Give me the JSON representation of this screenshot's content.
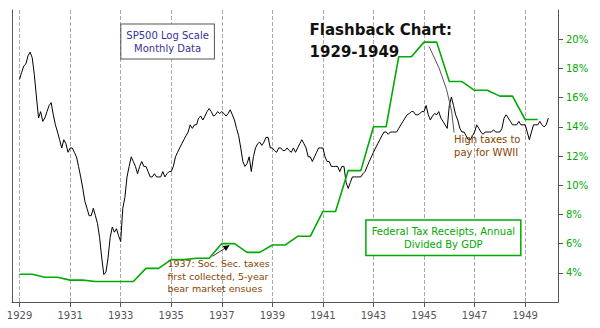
{
  "chart_data": {
    "type": "line",
    "title": "Flashback Chart:\n1929-1949",
    "log": "y",
    "grid": "x",
    "xlim": [
      1928.7,
      1950.3
    ],
    "xticks": [
      1929,
      1931,
      1933,
      1935,
      1937,
      1939,
      1941,
      1943,
      1945,
      1947,
      1949
    ],
    "ylim": [
      3.548133892335755,
      44.66835921509635
    ],
    "yticks": [],
    "y2lim": [
      2,
      22
    ],
    "y2ticks": [
      {
        "value": 4,
        "label": "4%"
      },
      {
        "value": 6,
        "label": "6%"
      },
      {
        "value": 8,
        "label": "8%"
      },
      {
        "value": 10,
        "label": "10%"
      },
      {
        "value": 12,
        "label": "12%"
      },
      {
        "value": 14,
        "label": "14%"
      },
      {
        "value": 16,
        "label": "16%"
      },
      {
        "value": 18,
        "label": "18%"
      },
      {
        "value": 20,
        "label": "20%"
      }
    ],
    "series": [
      {
        "color": "#000000",
        "x": [
          1929.0,
          1929.083,
          1929.167,
          1929.25,
          1929.333,
          1929.417,
          1929.5,
          1929.583,
          1929.667,
          1929.75,
          1929.833,
          1929.917,
          1930.0,
          1930.083,
          1930.167,
          1930.25,
          1930.333,
          1930.417,
          1930.5,
          1930.583,
          1930.667,
          1930.75,
          1930.833,
          1930.917,
          1931.0,
          1931.083,
          1931.167,
          1931.25,
          1931.333,
          1931.417,
          1931.5,
          1931.583,
          1931.667,
          1931.75,
          1931.833,
          1931.917,
          1932.0,
          1932.083,
          1932.167,
          1932.25,
          1932.333,
          1932.417,
          1932.5,
          1932.583,
          1932.667,
          1932.75,
          1932.833,
          1932.917,
          1933.0,
          1933.083,
          1933.167,
          1933.25,
          1933.333,
          1933.417,
          1933.5,
          1933.583,
          1933.667,
          1933.75,
          1933.833,
          1933.917,
          1934.0,
          1934.083,
          1934.167,
          1934.25,
          1934.333,
          1934.417,
          1934.5,
          1934.583,
          1934.667,
          1934.75,
          1934.833,
          1934.917,
          1935.0,
          1935.083,
          1935.167,
          1935.25,
          1935.333,
          1935.417,
          1935.5,
          1935.583,
          1935.667,
          1935.75,
          1935.833,
          1935.917,
          1936.0,
          1936.083,
          1936.167,
          1936.25,
          1936.333,
          1936.417,
          1936.5,
          1936.583,
          1936.667,
          1936.75,
          1936.833,
          1936.917,
          1937.0,
          1937.083,
          1937.167,
          1937.25,
          1937.333,
          1937.417,
          1937.5,
          1937.583,
          1937.667,
          1937.75,
          1937.833,
          1937.917,
          1938.0,
          1938.083,
          1938.167,
          1938.25,
          1938.333,
          1938.417,
          1938.5,
          1938.583,
          1938.667,
          1938.75,
          1938.833,
          1938.917,
          1939.0,
          1939.083,
          1939.167,
          1939.25,
          1939.333,
          1939.417,
          1939.5,
          1939.583,
          1939.667,
          1939.75,
          1939.833,
          1939.917,
          1940.0,
          1940.083,
          1940.167,
          1940.25,
          1940.333,
          1940.417,
          1940.5,
          1940.583,
          1940.667,
          1940.75,
          1940.833,
          1940.917,
          1941.0,
          1941.083,
          1941.167,
          1941.25,
          1941.333,
          1941.417,
          1941.5,
          1941.583,
          1941.667,
          1941.75,
          1941.833,
          1941.917,
          1942.0,
          1942.083,
          1942.167,
          1942.25,
          1942.333,
          1942.417,
          1942.5,
          1942.583,
          1942.667,
          1942.75,
          1942.833,
          1942.917,
          1943.0,
          1943.083,
          1943.167,
          1943.25,
          1943.333,
          1943.417,
          1943.5,
          1943.583,
          1943.667,
          1943.75,
          1943.833,
          1943.917,
          1944.0,
          1944.083,
          1944.167,
          1944.25,
          1944.333,
          1944.417,
          1944.5,
          1944.583,
          1944.667,
          1944.75,
          1944.833,
          1944.917,
          1945.0,
          1945.083,
          1945.167,
          1945.25,
          1945.333,
          1945.417,
          1945.5,
          1945.583,
          1945.667,
          1945.75,
          1945.833,
          1945.917,
          1946.0,
          1946.083,
          1946.167,
          1946.25,
          1946.333,
          1946.417,
          1946.5,
          1946.583,
          1946.667,
          1946.75,
          1946.833,
          1946.917,
          1947.0,
          1947.083,
          1947.167,
          1947.25,
          1947.333,
          1947.417,
          1947.5,
          1947.583,
          1947.667,
          1947.75,
          1947.833,
          1947.917,
          1948.0,
          1948.083,
          1948.167,
          1948.25,
          1948.333,
          1948.417,
          1948.5,
          1948.583,
          1948.667,
          1948.75,
          1948.833,
          1948.917,
          1949.0,
          1949.083,
          1949.167,
          1949.25,
          1949.333,
          1949.417,
          1949.5,
          1949.583,
          1949.667,
          1949.75,
          1949.833,
          1949.917
        ],
        "values": [
          24.5,
          26.0,
          27.5,
          28.0,
          30.0,
          31.0,
          29.5,
          25.5,
          21.0,
          17.5,
          18.5,
          17.0,
          17.5,
          18.5,
          19.5,
          20.0,
          18.0,
          16.5,
          15.5,
          14.5,
          13.5,
          14.5,
          14.0,
          13.0,
          13.5,
          13.5,
          13.0,
          12.5,
          11.5,
          10.5,
          9.5,
          8.5,
          8.0,
          7.5,
          7.5,
          8.0,
          7.5,
          7.0,
          6.2,
          5.2,
          4.5,
          4.6,
          5.2,
          6.2,
          6.8,
          6.5,
          6.7,
          6.3,
          6.0,
          8.0,
          8.8,
          10.5,
          11.5,
          12.5,
          12.0,
          11.5,
          10.8,
          11.5,
          12.0,
          11.5,
          11.5,
          11.0,
          10.5,
          10.5,
          10.8,
          10.5,
          10.5,
          10.5,
          11.0,
          10.5,
          10.8,
          11.0,
          11.0,
          11.5,
          12.5,
          13.0,
          13.5,
          14.0,
          14.5,
          15.0,
          15.5,
          16.5,
          16.0,
          16.5,
          16.5,
          17.5,
          17.8,
          17.2,
          17.8,
          18.5,
          19.0,
          18.5,
          17.8,
          18.0,
          18.5,
          18.2,
          18.5,
          18.2,
          17.8,
          18.2,
          18.8,
          18.0,
          17.2,
          16.0,
          15.0,
          13.5,
          12.0,
          11.5,
          11.8,
          12.5,
          11.0,
          12.5,
          13.5,
          14.0,
          14.2,
          13.8,
          14.2,
          14.8,
          14.8,
          13.5,
          13.5,
          13.2,
          13.0,
          13.5,
          13.5,
          13.2,
          13.2,
          13.5,
          13.2,
          13.0,
          13.5,
          13.0,
          13.5,
          14.0,
          14.5,
          14.0,
          13.5,
          12.5,
          12.5,
          12.0,
          12.5,
          13.0,
          13.5,
          13.5,
          13.5,
          12.5,
          12.0,
          12.0,
          11.5,
          11.5,
          11.5,
          11.5,
          11.0,
          11.5,
          11.5,
          10.0,
          9.5,
          10.0,
          10.5,
          10.5,
          10.5,
          10.5,
          10.5,
          10.8,
          11.0,
          11.5,
          12.0,
          12.5,
          13.0,
          13.5,
          14.0,
          14.5,
          15.0,
          15.5,
          15.5,
          15.2,
          15.5,
          15.5,
          15.5,
          15.5,
          16.0,
          16.5,
          17.0,
          17.5,
          18.0,
          18.2,
          18.5,
          18.5,
          18.0,
          18.0,
          18.2,
          18.5,
          18.5,
          19.5,
          18.0,
          17.2,
          17.8,
          18.2,
          18.0,
          18.5,
          17.5,
          17.0,
          16.5,
          16.0,
          19.5,
          21.0,
          19.5,
          18.0,
          17.2,
          16.0,
          15.5,
          15.5,
          15.0,
          14.5,
          14.5,
          15.0,
          15.5,
          16.5,
          16.0,
          15.5,
          15.2,
          15.5,
          15.5,
          15.5,
          15.5,
          15.8,
          15.5,
          15.5,
          15.5,
          16.0,
          17.5,
          18.0,
          17.5,
          17.0,
          16.5,
          16.5,
          16.5,
          17.0,
          16.5,
          16.5,
          16.5,
          15.5,
          14.5,
          15.5,
          16.5,
          16.5,
          16.5,
          17.0,
          16.5,
          16.2,
          16.5,
          17.5
        ]
      },
      {
        "color": "#00aa00",
        "axis": "y2",
        "x": [
          1929,
          1929.5,
          1930,
          1930.5,
          1931,
          1931.5,
          1932,
          1932.5,
          1933,
          1933.5,
          1934,
          1934.5,
          1935,
          1935.5,
          1936,
          1936.5,
          1937,
          1937.5,
          1938,
          1938.5,
          1939,
          1939.5,
          1940,
          1940.5,
          1941,
          1941.5,
          1942,
          1942.5,
          1943,
          1943.5,
          1944,
          1944.5,
          1945,
          1945.5,
          1946,
          1946.5,
          1947,
          1947.5,
          1948,
          1948.5,
          1949,
          1949.5
        ],
        "values": [
          3.9,
          3.9,
          3.7,
          3.7,
          3.5,
          3.5,
          3.4,
          3.4,
          3.4,
          3.4,
          4.3,
          4.3,
          4.9,
          4.9,
          5.0,
          5.0,
          6.0,
          6.0,
          5.4,
          5.4,
          5.9,
          5.9,
          6.5,
          6.5,
          8.2,
          8.2,
          11.0,
          11.0,
          14.0,
          14.0,
          18.8,
          18.8,
          19.8,
          19.8,
          17.1,
          17.1,
          16.5,
          16.5,
          16.1,
          16.1,
          14.5,
          14.5
        ]
      }
    ],
    "annotations": [
      {
        "text": "SP500 Log Scale\nMonthly Data"
      },
      {
        "text": "Federal Tax Receipts, Annual\nDivided By GDP"
      },
      {
        "text": "1937: Soc. Sec. taxes\nfirst collected, 5-year\nbear market ensues",
        "x": 1937.3,
        "y": 5.8
      },
      {
        "text": "High taxes to\npay for WWII",
        "x": 1945.2,
        "y": 19.5,
        "axis": "y2"
      }
    ]
  }
}
